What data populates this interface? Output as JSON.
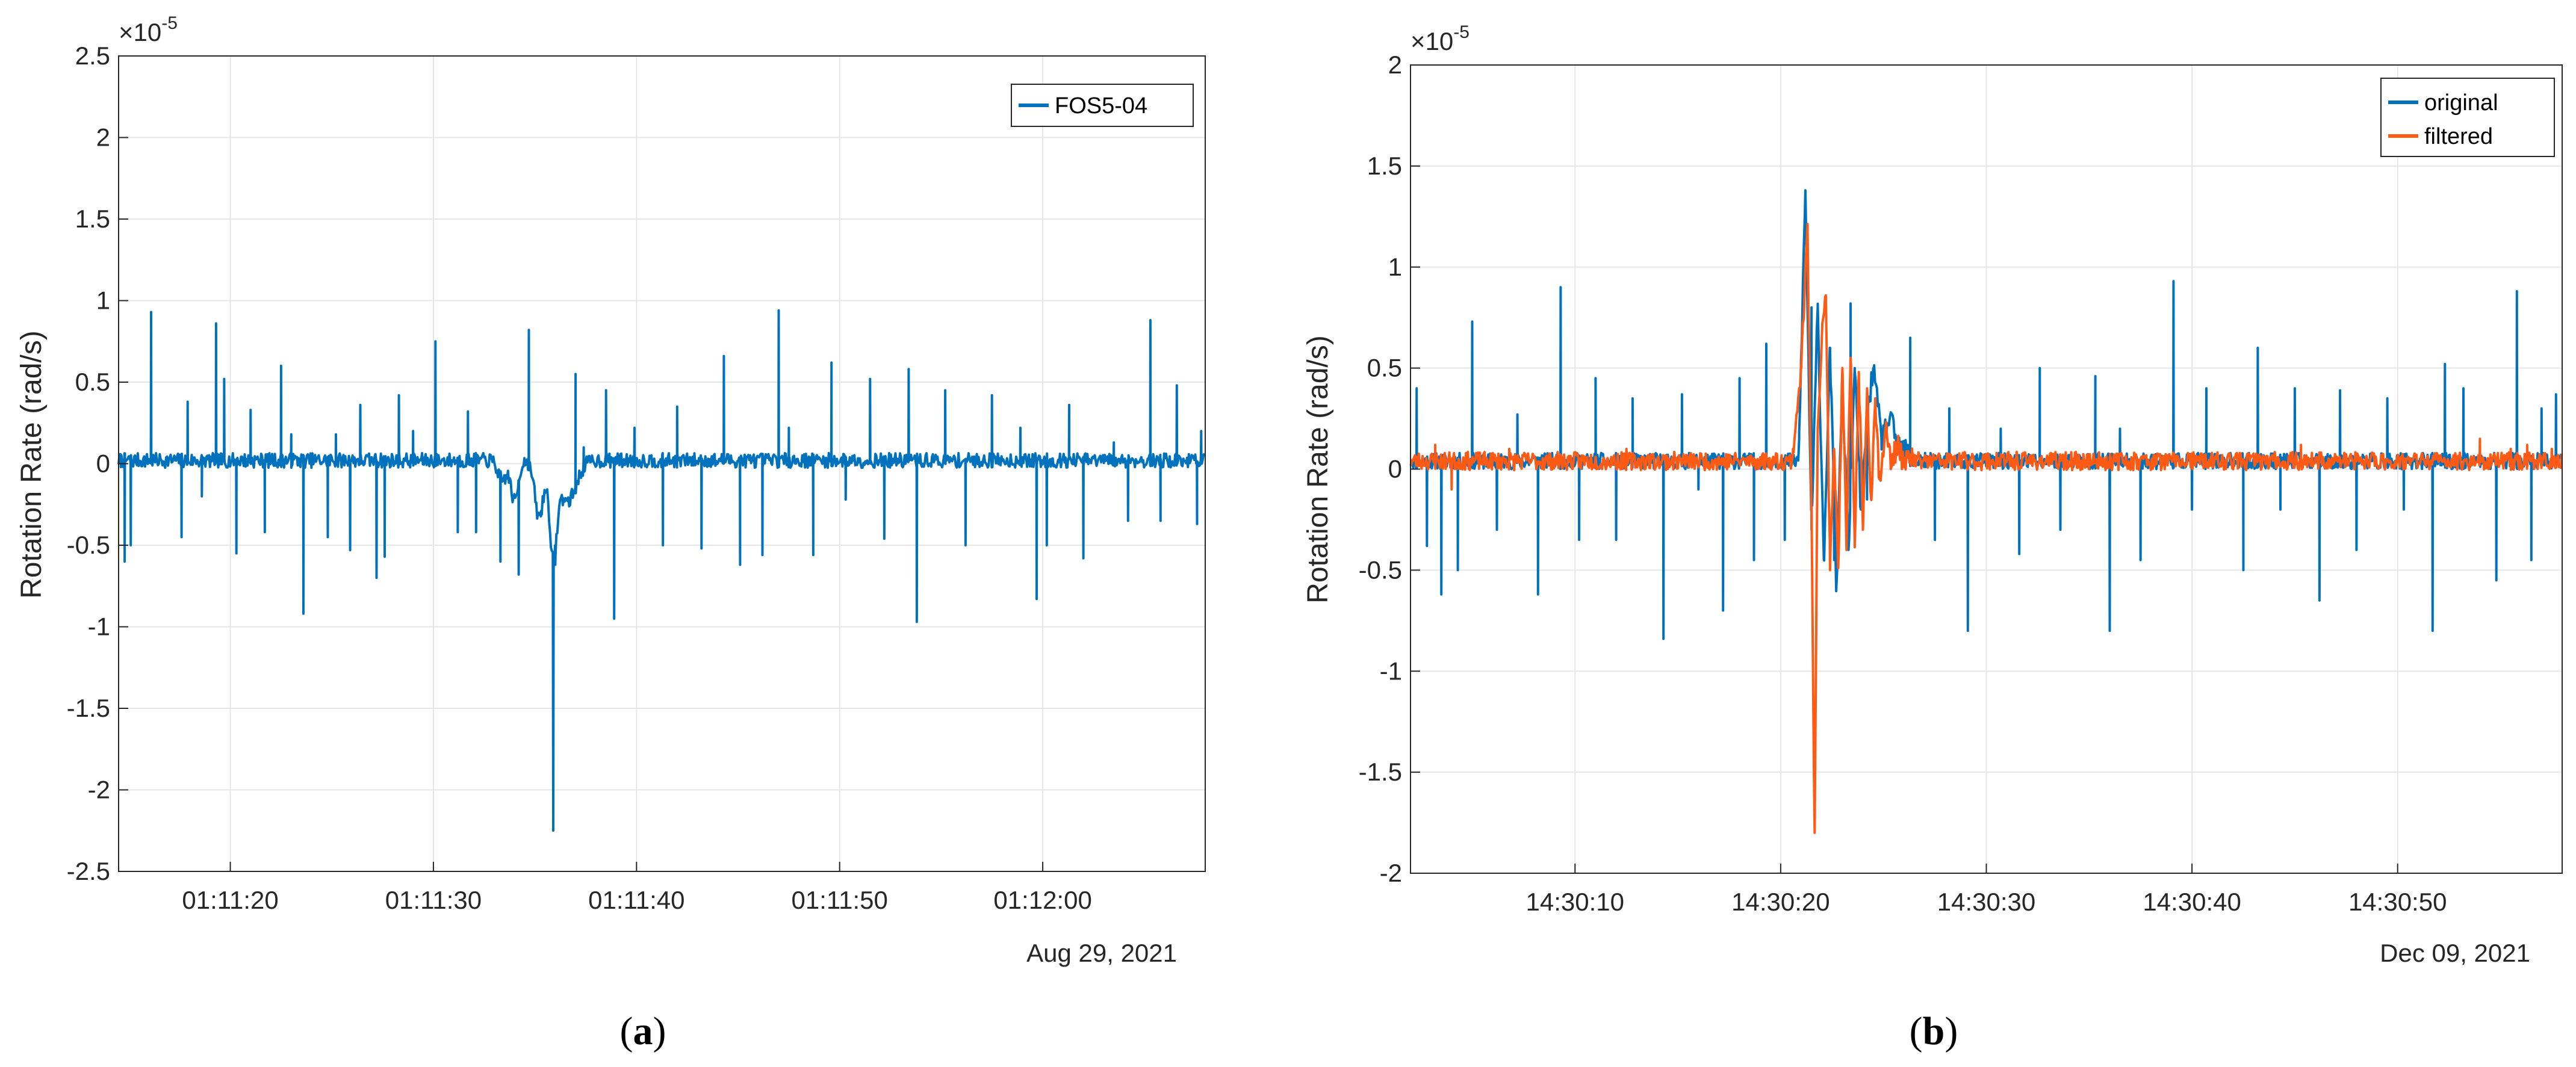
{
  "colors": {
    "original": "#0072BD",
    "filtered": "#FF5A14",
    "grid": "#e6e6e6",
    "axis": "#262626"
  },
  "chart_data": [
    {
      "type": "line",
      "caption_label": "a",
      "caption_open": "(",
      "caption_close": ")",
      "ylabel": "Rotation Rate (rad/s)",
      "exponent_base": "×10",
      "exponent_power": "-5",
      "yticks": [
        2.5,
        2,
        1.5,
        1,
        0.5,
        0,
        -0.5,
        -1,
        -1.5,
        -2,
        -2.5
      ],
      "ytick_labels": [
        "2.5",
        "2",
        "1.5",
        "1",
        "0.5",
        "0",
        "-0.5",
        "-1",
        "-1.5",
        "-2",
        "-2.5"
      ],
      "ylim": [
        -2.5,
        2.5
      ],
      "xlim": [
        14.5,
        68
      ],
      "xticks": [
        20,
        30,
        40,
        50,
        60
      ],
      "xtick_labels": [
        "01:11:20",
        "01:11:30",
        "01:11:40",
        "01:11:50",
        "01:12:00"
      ],
      "date_label": "Aug 29, 2021",
      "grid": true,
      "legend_position": "top-right",
      "series": [
        {
          "name": "FOS5-04",
          "color": "#0072BD",
          "baseline": 0.02,
          "noise": 0.045,
          "seed": 7,
          "spikes": [
            [
              14.6,
              0.05
            ],
            [
              14.8,
              -0.6
            ],
            [
              15.1,
              -0.5
            ],
            [
              16.1,
              0.93
            ],
            [
              17.6,
              -0.45
            ],
            [
              17.9,
              0.38
            ],
            [
              18.6,
              -0.2
            ],
            [
              19.3,
              0.86
            ],
            [
              19.7,
              0.52
            ],
            [
              20.3,
              -0.55
            ],
            [
              21.0,
              0.33
            ],
            [
              21.7,
              -0.42
            ],
            [
              22.5,
              0.6
            ],
            [
              23.0,
              0.18
            ],
            [
              23.6,
              -0.92
            ],
            [
              24.8,
              -0.45
            ],
            [
              25.2,
              0.18
            ],
            [
              25.9,
              -0.53
            ],
            [
              26.4,
              0.36
            ],
            [
              27.2,
              -0.7
            ],
            [
              27.6,
              -0.57
            ],
            [
              28.3,
              0.42
            ],
            [
              29.0,
              0.2
            ],
            [
              30.1,
              0.75
            ],
            [
              31.2,
              -0.42
            ],
            [
              31.7,
              0.32
            ],
            [
              32.1,
              -0.42
            ],
            [
              33.3,
              -0.6
            ],
            [
              34.2,
              -0.68
            ],
            [
              34.7,
              0.82
            ],
            [
              35.3,
              -0.32
            ],
            [
              36.0,
              -0.62
            ],
            [
              37.0,
              0.55
            ],
            [
              37.4,
              0.1
            ],
            [
              38.5,
              0.45
            ],
            [
              38.9,
              -0.95
            ],
            [
              39.9,
              0.22
            ],
            [
              41.3,
              -0.5
            ],
            [
              42.0,
              0.35
            ],
            [
              43.2,
              -0.52
            ],
            [
              44.3,
              0.66
            ],
            [
              45.1,
              -0.62
            ],
            [
              46.2,
              -0.56
            ],
            [
              47.0,
              0.94
            ],
            [
              47.5,
              0.22
            ],
            [
              48.7,
              -0.56
            ],
            [
              49.6,
              0.62
            ],
            [
              50.3,
              -0.22
            ],
            [
              51.5,
              0.52
            ],
            [
              52.2,
              -0.46
            ],
            [
              53.4,
              0.58
            ],
            [
              53.8,
              -0.97
            ],
            [
              55.2,
              0.45
            ],
            [
              56.2,
              -0.5
            ],
            [
              57.5,
              0.42
            ],
            [
              58.9,
              0.22
            ],
            [
              59.7,
              -0.83
            ],
            [
              60.2,
              -0.5
            ],
            [
              61.3,
              0.36
            ],
            [
              62.0,
              -0.58
            ],
            [
              63.5,
              0.13
            ],
            [
              64.2,
              -0.35
            ],
            [
              65.3,
              0.88
            ],
            [
              65.8,
              -0.35
            ],
            [
              66.6,
              0.48
            ],
            [
              67.6,
              -0.37
            ],
            [
              67.8,
              0.2
            ]
          ],
          "dips": [
            [
              33.4,
              -0.12,
              0.3
            ],
            [
              34.0,
              -0.25,
              0.25
            ],
            [
              35.2,
              -0.35,
              0.3
            ],
            [
              35.9,
              -0.55,
              0.25
            ],
            [
              36.6,
              -0.25,
              0.6
            ]
          ],
          "big_spike": [
            35.9,
            -2.25
          ]
        }
      ]
    },
    {
      "type": "line",
      "caption_label": "b",
      "caption_open": "(",
      "caption_close": ")",
      "ylabel": "Rotation Rate (rad/s)",
      "exponent_base": "×10",
      "exponent_power": "-5",
      "yticks": [
        2,
        1.5,
        1,
        0.5,
        0,
        -0.5,
        -1,
        -1.5,
        -2
      ],
      "ytick_labels": [
        "2",
        "1.5",
        "1",
        "0.5",
        "0",
        "-0.5",
        "-1",
        "-1.5",
        "-2"
      ],
      "ylim": [
        -2,
        2
      ],
      "xlim": [
        2,
        58
      ],
      "xticks": [
        10,
        20,
        30,
        40,
        50
      ],
      "xtick_labels": [
        "14:30:10",
        "14:30:20",
        "14:30:30",
        "14:30:40",
        "14:30:50"
      ],
      "date_label": "Dec 09, 2021",
      "grid": true,
      "legend_position": "top-right",
      "series": [
        {
          "name": "original",
          "color": "#0072BD",
          "baseline": 0.04,
          "noise": 0.04,
          "seed": 11,
          "spikes": [
            [
              2.3,
              0.4
            ],
            [
              2.8,
              -0.38
            ],
            [
              3.5,
              -0.62
            ],
            [
              4.3,
              -0.5
            ],
            [
              5.0,
              0.73
            ],
            [
              6.2,
              -0.3
            ],
            [
              7.2,
              0.27
            ],
            [
              7.7,
              0.05
            ],
            [
              8.2,
              -0.62
            ],
            [
              9.3,
              0.9
            ],
            [
              10.2,
              -0.35
            ],
            [
              11.0,
              0.45
            ],
            [
              12.0,
              -0.35
            ],
            [
              12.8,
              0.35
            ],
            [
              14.3,
              -0.84
            ],
            [
              15.2,
              0.37
            ],
            [
              16.0,
              -0.1
            ],
            [
              17.2,
              -0.7
            ],
            [
              18.0,
              0.45
            ],
            [
              18.7,
              -0.45
            ],
            [
              19.3,
              0.62
            ],
            [
              20.2,
              -0.35
            ],
            [
              21.5,
              0.8
            ],
            [
              22.6,
              -0.45
            ],
            [
              23.4,
              0.82
            ],
            [
              24.2,
              -0.15
            ],
            [
              26.3,
              0.65
            ],
            [
              27.5,
              -0.35
            ],
            [
              28.2,
              0.3
            ],
            [
              29.1,
              -0.8
            ],
            [
              30.7,
              0.2
            ],
            [
              31.6,
              -0.42
            ],
            [
              32.6,
              0.5
            ],
            [
              33.6,
              -0.3
            ],
            [
              35.3,
              0.46
            ],
            [
              36.0,
              -0.8
            ],
            [
              36.5,
              0.2
            ],
            [
              37.5,
              -0.45
            ],
            [
              39.1,
              0.93
            ],
            [
              40.0,
              -0.2
            ],
            [
              40.7,
              0.4
            ],
            [
              42.5,
              -0.5
            ],
            [
              43.2,
              0.6
            ],
            [
              44.3,
              -0.2
            ],
            [
              45.0,
              0.4
            ],
            [
              46.2,
              -0.65
            ],
            [
              47.2,
              0.39
            ],
            [
              48.0,
              -0.4
            ],
            [
              49.5,
              0.35
            ],
            [
              50.3,
              -0.2
            ],
            [
              51.7,
              -0.8
            ],
            [
              52.3,
              0.52
            ],
            [
              53.2,
              0.4
            ],
            [
              54.8,
              -0.55
            ],
            [
              55.8,
              0.88
            ],
            [
              56.5,
              -0.45
            ],
            [
              57.0,
              0.3
            ],
            [
              57.7,
              0.37
            ]
          ],
          "burst": [
            [
              20.9,
              0.15
            ],
            [
              21.2,
              1.38
            ],
            [
              21.5,
              -0.3
            ],
            [
              21.8,
              0.8
            ],
            [
              22.1,
              -0.45
            ],
            [
              22.4,
              0.6
            ],
            [
              22.7,
              -0.6
            ],
            [
              23.0,
              0.4
            ],
            [
              23.3,
              -0.4
            ],
            [
              23.6,
              0.5
            ],
            [
              23.9,
              -0.2
            ],
            [
              24.2,
              0.25
            ],
            [
              24.5,
              0.5
            ],
            [
              24.9,
              0.15
            ],
            [
              25.3,
              0.25
            ],
            [
              25.8,
              0.1
            ],
            [
              26.3,
              0.08
            ]
          ]
        },
        {
          "name": "filtered",
          "color": "#FF5A14",
          "baseline": 0.04,
          "noise": 0.045,
          "seed": 23,
          "spikes": [
            [
              3.2,
              0.12
            ],
            [
              4.0,
              -0.1
            ],
            [
              6.8,
              0.1
            ],
            [
              12.5,
              0.1
            ],
            [
              30.5,
              0.08
            ],
            [
              45.3,
              0.12
            ],
            [
              54.0,
              0.15
            ],
            [
              55.5,
              0.1
            ],
            [
              56.3,
              0.12
            ],
            [
              57.5,
              0.1
            ]
          ],
          "burst": [
            [
              20.6,
              0.1
            ],
            [
              21.0,
              0.5
            ],
            [
              21.3,
              1.2
            ],
            [
              21.5,
              -0.2
            ],
            [
              21.65,
              -1.8
            ],
            [
              21.8,
              0.2
            ],
            [
              22.0,
              0.65
            ],
            [
              22.2,
              0.86
            ],
            [
              22.4,
              -0.5
            ],
            [
              22.6,
              0.1
            ],
            [
              22.8,
              -0.49
            ],
            [
              23.0,
              0.5
            ],
            [
              23.2,
              -0.4
            ],
            [
              23.4,
              0.55
            ],
            [
              23.6,
              -0.35
            ],
            [
              23.8,
              0.48
            ],
            [
              24.0,
              -0.3
            ],
            [
              24.2,
              0.4
            ],
            [
              24.4,
              -0.15
            ],
            [
              24.6,
              0.35
            ],
            [
              24.8,
              -0.05
            ],
            [
              25.1,
              0.2
            ],
            [
              25.4,
              0.02
            ],
            [
              25.7,
              0.14
            ],
            [
              26.0,
              0.01
            ],
            [
              26.4,
              0.08
            ]
          ]
        }
      ]
    }
  ]
}
